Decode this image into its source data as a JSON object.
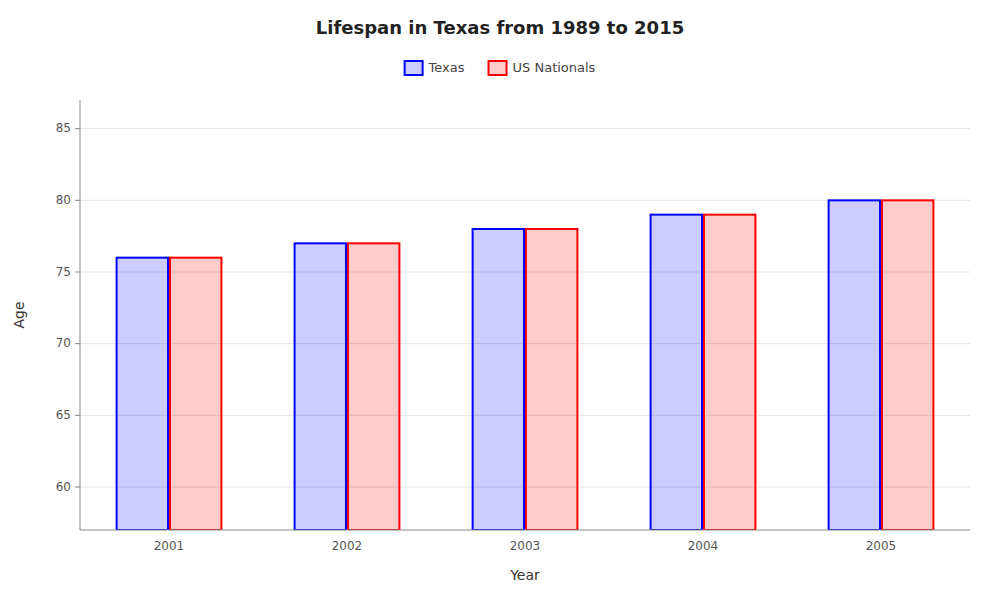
{
  "chart_data": {
    "type": "bar",
    "title": "Lifespan in Texas from 1989 to 2015",
    "xlabel": "Year",
    "ylabel": "Age",
    "categories": [
      "2001",
      "2002",
      "2003",
      "2004",
      "2005"
    ],
    "series": [
      {
        "name": "Texas",
        "color": "#0000ff",
        "values": [
          76,
          77,
          78,
          79,
          80
        ]
      },
      {
        "name": "US Nationals",
        "color": "#ff0000",
        "values": [
          76,
          77,
          78,
          79,
          80
        ]
      }
    ],
    "ylim": [
      57,
      87
    ],
    "yticks": [
      60,
      65,
      70,
      75,
      80,
      85
    ],
    "grid": true,
    "legend": "top"
  }
}
